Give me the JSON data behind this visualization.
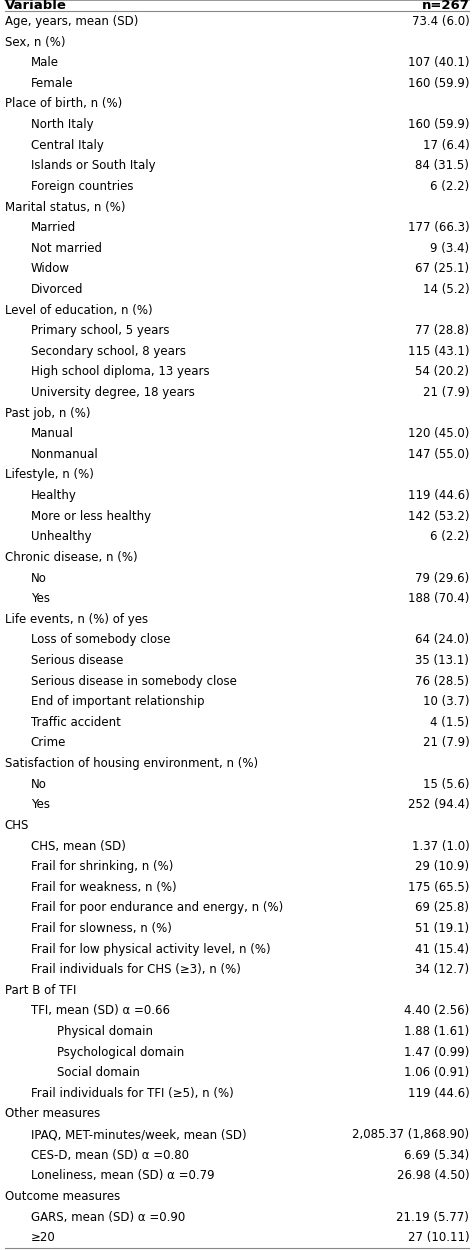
{
  "col1_header": "Variable",
  "col2_header": "n=267",
  "rows": [
    {
      "label": "Age, years, mean (SD)",
      "value": "73.4 (6.0)",
      "indent": 0
    },
    {
      "label": "Sex, n (%)",
      "value": "",
      "indent": 0
    },
    {
      "label": "Male",
      "value": "107 (40.1)",
      "indent": 1
    },
    {
      "label": "Female",
      "value": "160 (59.9)",
      "indent": 1
    },
    {
      "label": "Place of birth, n (%)",
      "value": "",
      "indent": 0
    },
    {
      "label": "North Italy",
      "value": "160 (59.9)",
      "indent": 1
    },
    {
      "label": "Central Italy",
      "value": "17 (6.4)",
      "indent": 1
    },
    {
      "label": "Islands or South Italy",
      "value": "84 (31.5)",
      "indent": 1
    },
    {
      "label": "Foreign countries",
      "value": "6 (2.2)",
      "indent": 1
    },
    {
      "label": "Marital status, n (%)",
      "value": "",
      "indent": 0
    },
    {
      "label": "Married",
      "value": "177 (66.3)",
      "indent": 1
    },
    {
      "label": "Not married",
      "value": "9 (3.4)",
      "indent": 1
    },
    {
      "label": "Widow",
      "value": "67 (25.1)",
      "indent": 1
    },
    {
      "label": "Divorced",
      "value": "14 (5.2)",
      "indent": 1
    },
    {
      "label": "Level of education, n (%)",
      "value": "",
      "indent": 0
    },
    {
      "label": "Primary school, 5 years",
      "value": "77 (28.8)",
      "indent": 1
    },
    {
      "label": "Secondary school, 8 years",
      "value": "115 (43.1)",
      "indent": 1
    },
    {
      "label": "High school diploma, 13 years",
      "value": "54 (20.2)",
      "indent": 1
    },
    {
      "label": "University degree, 18 years",
      "value": "21 (7.9)",
      "indent": 1
    },
    {
      "label": "Past job, n (%)",
      "value": "",
      "indent": 0
    },
    {
      "label": "Manual",
      "value": "120 (45.0)",
      "indent": 1
    },
    {
      "label": "Nonmanual",
      "value": "147 (55.0)",
      "indent": 1
    },
    {
      "label": "Lifestyle, n (%)",
      "value": "",
      "indent": 0
    },
    {
      "label": "Healthy",
      "value": "119 (44.6)",
      "indent": 1
    },
    {
      "label": "More or less healthy",
      "value": "142 (53.2)",
      "indent": 1
    },
    {
      "label": "Unhealthy",
      "value": "6 (2.2)",
      "indent": 1
    },
    {
      "label": "Chronic disease, n (%)",
      "value": "",
      "indent": 0
    },
    {
      "label": "No",
      "value": "79 (29.6)",
      "indent": 1
    },
    {
      "label": "Yes",
      "value": "188 (70.4)",
      "indent": 1
    },
    {
      "label": "Life events, n (%) of yes",
      "value": "",
      "indent": 0
    },
    {
      "label": "Loss of somebody close",
      "value": "64 (24.0)",
      "indent": 1
    },
    {
      "label": "Serious disease",
      "value": "35 (13.1)",
      "indent": 1
    },
    {
      "label": "Serious disease in somebody close",
      "value": "76 (28.5)",
      "indent": 1
    },
    {
      "label": "End of important relationship",
      "value": "10 (3.7)",
      "indent": 1
    },
    {
      "label": "Traffic accident",
      "value": "4 (1.5)",
      "indent": 1
    },
    {
      "label": "Crime",
      "value": "21 (7.9)",
      "indent": 1
    },
    {
      "label": "Satisfaction of housing environment, n (%)",
      "value": "",
      "indent": 0
    },
    {
      "label": "No",
      "value": "15 (5.6)",
      "indent": 1
    },
    {
      "label": "Yes",
      "value": "252 (94.4)",
      "indent": 1
    },
    {
      "label": "CHS",
      "value": "",
      "indent": 0
    },
    {
      "label": "CHS, mean (SD)",
      "value": "1.37 (1.0)",
      "indent": 1
    },
    {
      "label": "Frail for shrinking, n (%)",
      "value": "29 (10.9)",
      "indent": 1
    },
    {
      "label": "Frail for weakness, n (%)",
      "value": "175 (65.5)",
      "indent": 1
    },
    {
      "label": "Frail for poor endurance and energy, n (%)",
      "value": "69 (25.8)",
      "indent": 1
    },
    {
      "label": "Frail for slowness, n (%)",
      "value": "51 (19.1)",
      "indent": 1
    },
    {
      "label": "Frail for low physical activity level, n (%)",
      "value": "41 (15.4)",
      "indent": 1
    },
    {
      "label": "Frail individuals for CHS (≥3), n (%)",
      "value": "34 (12.7)",
      "indent": 1
    },
    {
      "label": "Part B of TFI",
      "value": "",
      "indent": 0
    },
    {
      "label": "TFI, mean (SD) α =0.66",
      "value": "4.40 (2.56)",
      "indent": 1
    },
    {
      "label": "Physical domain",
      "value": "1.88 (1.61)",
      "indent": 2
    },
    {
      "label": "Psychological domain",
      "value": "1.47 (0.99)",
      "indent": 2
    },
    {
      "label": "Social domain",
      "value": "1.06 (0.91)",
      "indent": 2
    },
    {
      "label": "Frail individuals for TFI (≥5), n (%)",
      "value": "119 (44.6)",
      "indent": 1
    },
    {
      "label": "Other measures",
      "value": "",
      "indent": 0
    },
    {
      "label": "IPAQ, MET-minutes/week, mean (SD)",
      "value": "2,085.37 (1,868.90)",
      "indent": 1
    },
    {
      "label": "CES-D, mean (SD) α =0.80",
      "value": "6.69 (5.34)",
      "indent": 1
    },
    {
      "label": "Loneliness, mean (SD) α =0.79",
      "value": "26.98 (4.50)",
      "indent": 1
    },
    {
      "label": "Outcome measures",
      "value": "",
      "indent": 0
    },
    {
      "label": "GARS, mean (SD) α =0.90",
      "value": "21.19 (5.77)",
      "indent": 1
    },
    {
      "label": "≥20",
      "value": "27 (10.11)",
      "indent": 1
    }
  ],
  "font_family": "DejaVu Sans",
  "bg_color": "#ffffff",
  "text_color": "#000000",
  "line_color": "#888888",
  "font_size": 8.5,
  "header_font_size": 9.5
}
